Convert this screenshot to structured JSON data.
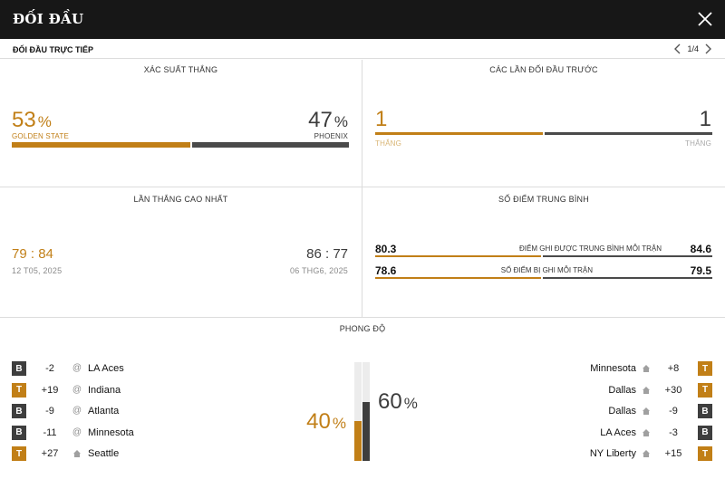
{
  "header": {
    "title": "ĐỐI ĐẦU"
  },
  "subheader": {
    "title": "ĐỐI ĐẦU TRỰC TIẾP",
    "pager": "1/4"
  },
  "win_probability": {
    "label": "XÁC SUẤT THẮNG",
    "left": {
      "value": "53",
      "unit": "%",
      "team": "GOLDEN STATE",
      "share": 0.53
    },
    "right": {
      "value": "47",
      "unit": "%",
      "team": "PHOENIX",
      "share": 0.47
    }
  },
  "previous_meetings": {
    "label": "CÁC LẦN ĐỐI ĐẦU TRƯỚC",
    "left": {
      "value": "1",
      "caption": "THẮNG"
    },
    "right": {
      "value": "1",
      "caption": "THẮNG"
    }
  },
  "biggest_win": {
    "label": "LẦN THẮNG CAO NHẤT",
    "left": {
      "score_a": "79",
      "sep": ":",
      "score_b": "84",
      "date": "12 T05, 2025"
    },
    "right": {
      "score_a": "86",
      "sep": ":",
      "score_b": "77",
      "date": "06 THG6, 2025"
    }
  },
  "average_points": {
    "label": "SỐ ĐIỂM TRUNG BÌNH",
    "rows": [
      {
        "left": "80.3",
        "label": "ĐIỂM GHI ĐƯỢC TRUNG BÌNH MỖI TRẬN",
        "right": "84.6"
      },
      {
        "left": "78.6",
        "label": "SỐ ĐIỂM BỊ GHI MỖI TRẬN",
        "right": "79.5"
      }
    ]
  },
  "form": {
    "label": "PHONG ĐỘ",
    "left_pct": {
      "value": "40",
      "unit": "%",
      "level": 0.4
    },
    "right_pct": {
      "value": "60",
      "unit": "%",
      "level": 0.6
    },
    "left_games": [
      {
        "result": "B",
        "diff": "-2",
        "venue": "away",
        "venue_icon": "at-icon",
        "opponent": "LA Aces"
      },
      {
        "result": "T",
        "diff": "+19",
        "venue": "away",
        "venue_icon": "at-icon",
        "opponent": "Indiana"
      },
      {
        "result": "B",
        "diff": "-9",
        "venue": "away",
        "venue_icon": "at-icon",
        "opponent": "Atlanta"
      },
      {
        "result": "B",
        "diff": "-11",
        "venue": "away",
        "venue_icon": "at-icon",
        "opponent": "Minnesota"
      },
      {
        "result": "T",
        "diff": "+27",
        "venue": "home",
        "venue_icon": "home-icon",
        "opponent": "Seattle"
      }
    ],
    "right_games": [
      {
        "result": "T",
        "diff": "+8",
        "venue": "home",
        "venue_icon": "home-icon",
        "opponent": "Minnesota"
      },
      {
        "result": "T",
        "diff": "+30",
        "venue": "home",
        "venue_icon": "home-icon",
        "opponent": "Dallas"
      },
      {
        "result": "B",
        "diff": "-9",
        "venue": "home",
        "venue_icon": "home-icon",
        "opponent": "Dallas"
      },
      {
        "result": "B",
        "diff": "-3",
        "venue": "home",
        "venue_icon": "home-icon",
        "opponent": "LA Aces"
      },
      {
        "result": "T",
        "diff": "+15",
        "venue": "home",
        "venue_icon": "home-icon",
        "opponent": "NY Liberty"
      }
    ]
  },
  "colors": {
    "gold": "#c17f17",
    "dark": "#3e3e3e",
    "header_bg": "#171717"
  }
}
